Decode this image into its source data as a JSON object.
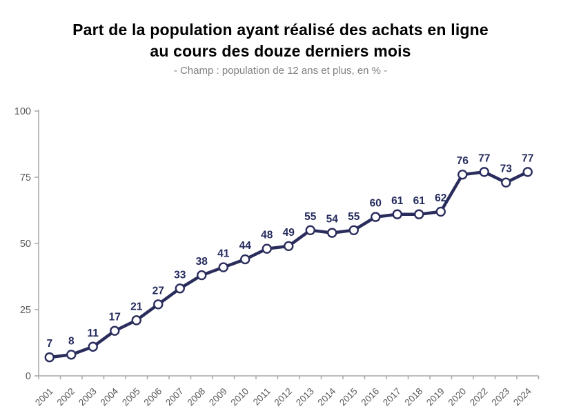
{
  "page": {
    "background": "#ffffff"
  },
  "chart_data": {
    "type": "line",
    "title": "Part de la population ayant réalisé des achats en ligne au cours des douze derniers mois",
    "title_lines": [
      "Part de la population ayant réalisé des achats en ligne",
      "au cours des douze derniers mois"
    ],
    "subtitle": "- Champ : population de 12 ans et plus, en % -",
    "categories": [
      "2001",
      "2002",
      "2003",
      "2004",
      "2005",
      "2006",
      "2007",
      "2008",
      "2009",
      "2010",
      "2011",
      "2012",
      "2013",
      "2014",
      "2015",
      "2016",
      "2017",
      "2018",
      "2019",
      "2020",
      "2022",
      "2023",
      "2024"
    ],
    "values": [
      7,
      8,
      11,
      17,
      21,
      27,
      33,
      38,
      41,
      44,
      48,
      49,
      55,
      54,
      55,
      60,
      61,
      61,
      62,
      76,
      77,
      73,
      77
    ],
    "xlabel": "",
    "ylabel": "",
    "ylim": [
      0,
      100
    ],
    "yticks": [
      0,
      25,
      50,
      75,
      100
    ],
    "grid": false,
    "legend": "none",
    "data_labels": true
  },
  "colors": {
    "line": "#2a2d5c",
    "marker_fill": "#ffffff",
    "marker_stroke": "#2a2d5c",
    "data_label": "#232a5c",
    "axis": "#a6a6a6",
    "tick_label": "#595959",
    "title": "#000000",
    "subtitle": "#7f7f7f"
  }
}
